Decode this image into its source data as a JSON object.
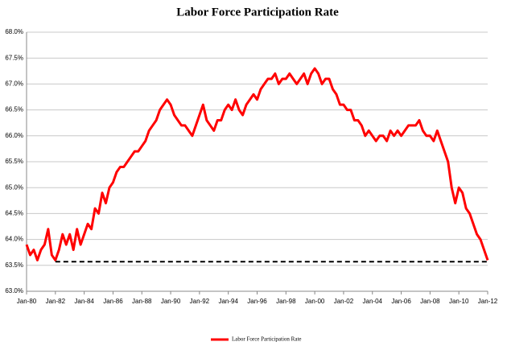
{
  "chart_data": {
    "type": "line",
    "title": "Labor Force Participation Rate",
    "categories": [
      "Jan-80",
      null,
      null,
      null,
      null,
      null,
      null,
      null,
      "Jan-82",
      null,
      null,
      null,
      null,
      null,
      null,
      null,
      "Jan-84",
      null,
      null,
      null,
      null,
      null,
      null,
      null,
      "Jan-86",
      null,
      null,
      null,
      null,
      null,
      null,
      null,
      "Jan-88",
      null,
      null,
      null,
      null,
      null,
      null,
      null,
      "Jan-90",
      null,
      null,
      null,
      null,
      null,
      null,
      null,
      "Jan-92",
      null,
      null,
      null,
      null,
      null,
      null,
      null,
      "Jan-94",
      null,
      null,
      null,
      null,
      null,
      null,
      null,
      "Jan-96",
      null,
      null,
      null,
      null,
      null,
      null,
      null,
      "Jan-98",
      null,
      null,
      null,
      null,
      null,
      null,
      null,
      "Jan-00",
      null,
      null,
      null,
      null,
      null,
      null,
      null,
      "Jan-02",
      null,
      null,
      null,
      null,
      null,
      null,
      null,
      "Jan-04",
      null,
      null,
      null,
      null,
      null,
      null,
      null,
      "Jan-06",
      null,
      null,
      null,
      null,
      null,
      null,
      null,
      "Jan-08",
      null,
      null,
      null,
      null,
      null,
      null,
      null,
      "Jan-10",
      null,
      null,
      null,
      null,
      null,
      null,
      null,
      "Jan-12"
    ],
    "series": [
      {
        "name": "Labor Force Participation Rate",
        "color": "#ff0000",
        "values": [
          63.9,
          63.7,
          63.8,
          63.6,
          63.8,
          63.9,
          64.2,
          63.7,
          63.6,
          63.8,
          64.1,
          63.9,
          64.1,
          63.8,
          64.2,
          63.9,
          64.1,
          64.3,
          64.2,
          64.6,
          64.5,
          64.9,
          64.7,
          65.0,
          65.1,
          65.3,
          65.4,
          65.4,
          65.5,
          65.6,
          65.7,
          65.7,
          65.8,
          65.9,
          66.1,
          66.2,
          66.3,
          66.5,
          66.6,
          66.7,
          66.6,
          66.4,
          66.3,
          66.2,
          66.2,
          66.1,
          66.0,
          66.2,
          66.4,
          66.6,
          66.3,
          66.2,
          66.1,
          66.3,
          66.3,
          66.5,
          66.6,
          66.5,
          66.7,
          66.5,
          66.4,
          66.6,
          66.7,
          66.8,
          66.7,
          66.9,
          67.0,
          67.1,
          67.1,
          67.2,
          67.0,
          67.1,
          67.1,
          67.2,
          67.1,
          67.0,
          67.1,
          67.2,
          67.0,
          67.2,
          67.3,
          67.2,
          67.0,
          67.1,
          67.1,
          66.9,
          66.8,
          66.6,
          66.6,
          66.5,
          66.5,
          66.3,
          66.3,
          66.2,
          66.0,
          66.1,
          66.0,
          65.9,
          66.0,
          66.0,
          65.9,
          66.1,
          66.0,
          66.1,
          66.0,
          66.1,
          66.2,
          66.2,
          66.2,
          66.3,
          66.1,
          66.0,
          66.0,
          65.9,
          66.1,
          65.9,
          65.7,
          65.5,
          65.0,
          64.7,
          65.0,
          64.9,
          64.6,
          64.5,
          64.3,
          64.1,
          64.0,
          63.8,
          63.6
        ]
      }
    ],
    "reference_value": 63.57,
    "ylim": [
      63.0,
      68.0
    ],
    "yticks": [
      {
        "value": 63.0,
        "label": "63.0%"
      },
      {
        "value": 63.5,
        "label": "63.5%"
      },
      {
        "value": 64.0,
        "label": "64.0%"
      },
      {
        "value": 64.5,
        "label": "64.5%"
      },
      {
        "value": 65.0,
        "label": "65.0%"
      },
      {
        "value": 65.5,
        "label": "65.5%"
      },
      {
        "value": 66.0,
        "label": "66.0%"
      },
      {
        "value": 66.5,
        "label": "66.5%"
      },
      {
        "value": 67.0,
        "label": "67.0%"
      },
      {
        "value": 67.5,
        "label": "67.5%"
      },
      {
        "value": 68.0,
        "label": "68.0%"
      }
    ],
    "grid": true
  }
}
